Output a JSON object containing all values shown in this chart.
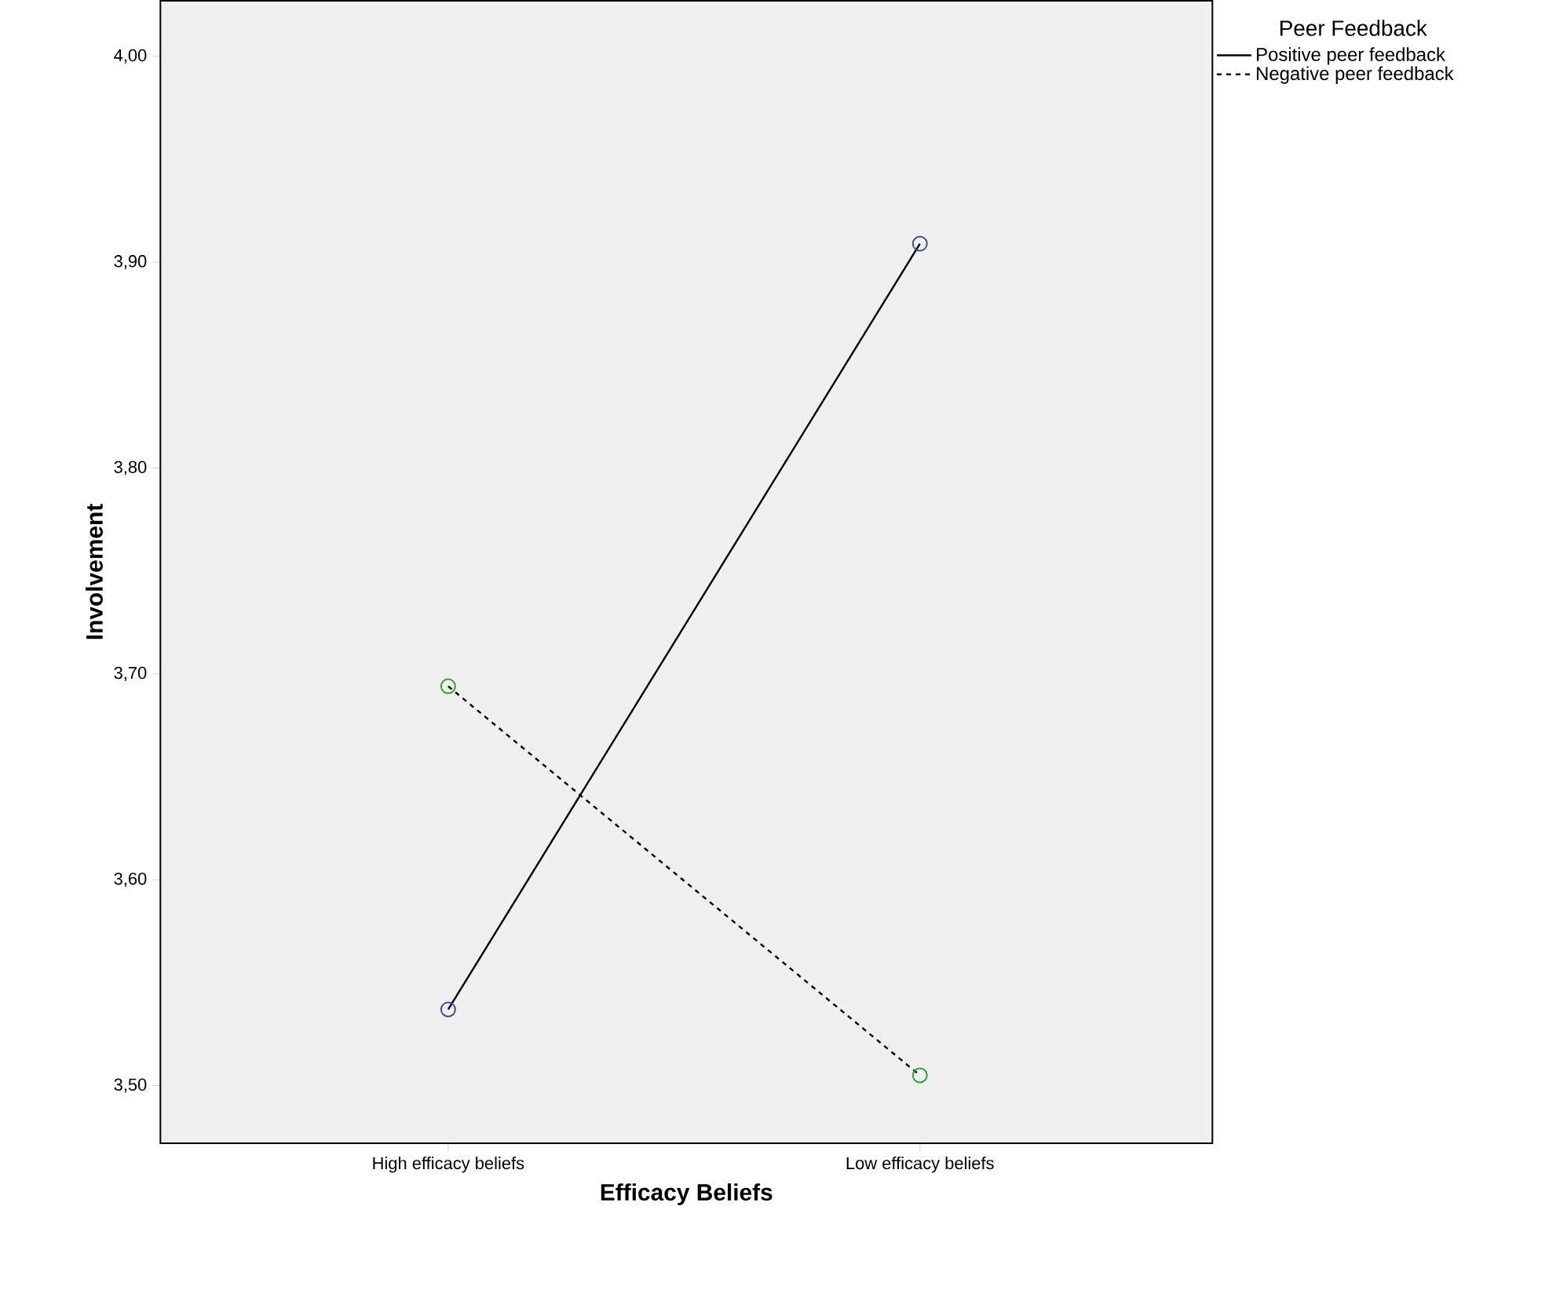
{
  "chart_data": {
    "type": "line",
    "xlabel": "Efficacy Beliefs",
    "ylabel": "Involvement",
    "legend_title": "Peer Feedback",
    "legend": "top right",
    "marker": "circle",
    "grid": false,
    "categories": [
      "High efficacy beliefs",
      "Low  efficacy beliefs"
    ],
    "ylim": [
      3.472,
      4.027
    ],
    "yticks": [
      {
        "value": 3.5,
        "label": "3,50"
      },
      {
        "value": 3.6,
        "label": "3,60"
      },
      {
        "value": 3.7,
        "label": "3,70"
      },
      {
        "value": 3.8,
        "label": "3,80"
      },
      {
        "value": 3.9,
        "label": "3,90"
      },
      {
        "value": 4.0,
        "label": "4,00"
      }
    ],
    "series": [
      {
        "name": "Positive peer feedback",
        "color": "#000000",
        "line_style": "solid",
        "colors": [
          "#3a4ea0",
          "#3a4ea0"
        ],
        "values": [
          3.537,
          3.909
        ]
      },
      {
        "name": "Negative peer feedback",
        "color": "#000000",
        "line_style": "dashed",
        "colors": [
          "#2aa52a",
          "#2aa52a"
        ],
        "values": [
          3.694,
          3.505
        ]
      }
    ]
  }
}
